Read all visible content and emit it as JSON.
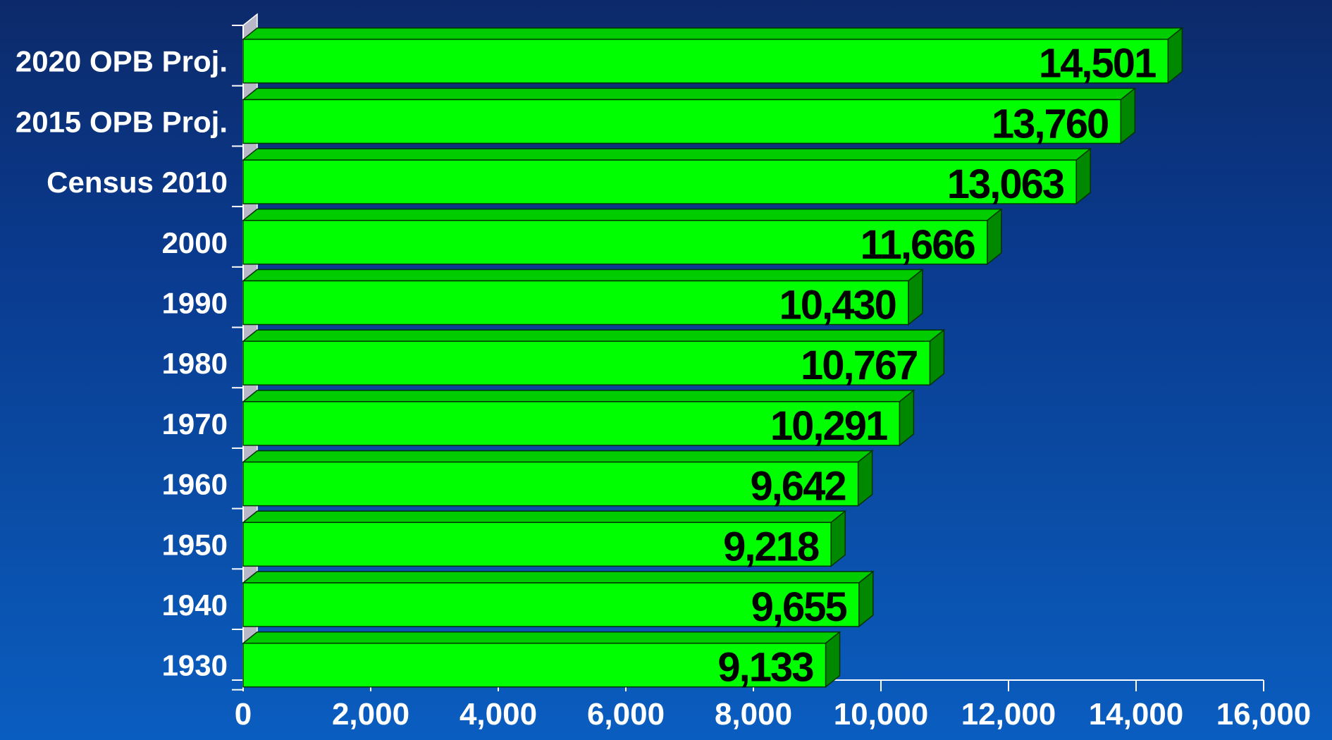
{
  "chart_data": {
    "type": "bar",
    "orientation": "horizontal",
    "categories": [
      "2020 OPB Proj.",
      "2015 OPB Proj.",
      "Census 2010",
      "2000",
      "1990",
      "1980",
      "1970",
      "1960",
      "1950",
      "1940",
      "1930"
    ],
    "values": [
      14501,
      13760,
      13063,
      11666,
      10430,
      10767,
      10291,
      9642,
      9218,
      9655,
      9133
    ],
    "value_labels": [
      "14,501",
      "13,760",
      "13,063",
      "11,666",
      "10,430",
      "10,767",
      "10,291",
      "9,642",
      "9,218",
      "9,655",
      "9,133"
    ],
    "xlim": [
      0,
      16000
    ],
    "x_ticks": [
      0,
      2000,
      4000,
      6000,
      8000,
      10000,
      12000,
      14000,
      16000
    ],
    "x_tick_labels": [
      "0",
      "2,000",
      "4,000",
      "6,000",
      "8,000",
      "10,000",
      "12,000",
      "14,000",
      "16,000"
    ],
    "title": "",
    "xlabel": "",
    "ylabel": "",
    "grid": false,
    "legend": "none",
    "style": "3d-bars",
    "colors": {
      "bar_face": "#00ff00",
      "bar_top": "#00cc00",
      "bar_side": "#008800",
      "bar_outline": "#003300",
      "axis": "#ffffff",
      "category_text": "#ffffff",
      "value_text": "#000000",
      "background_top": "#0c2a6a",
      "background_bottom": "#0a5dc0"
    }
  }
}
